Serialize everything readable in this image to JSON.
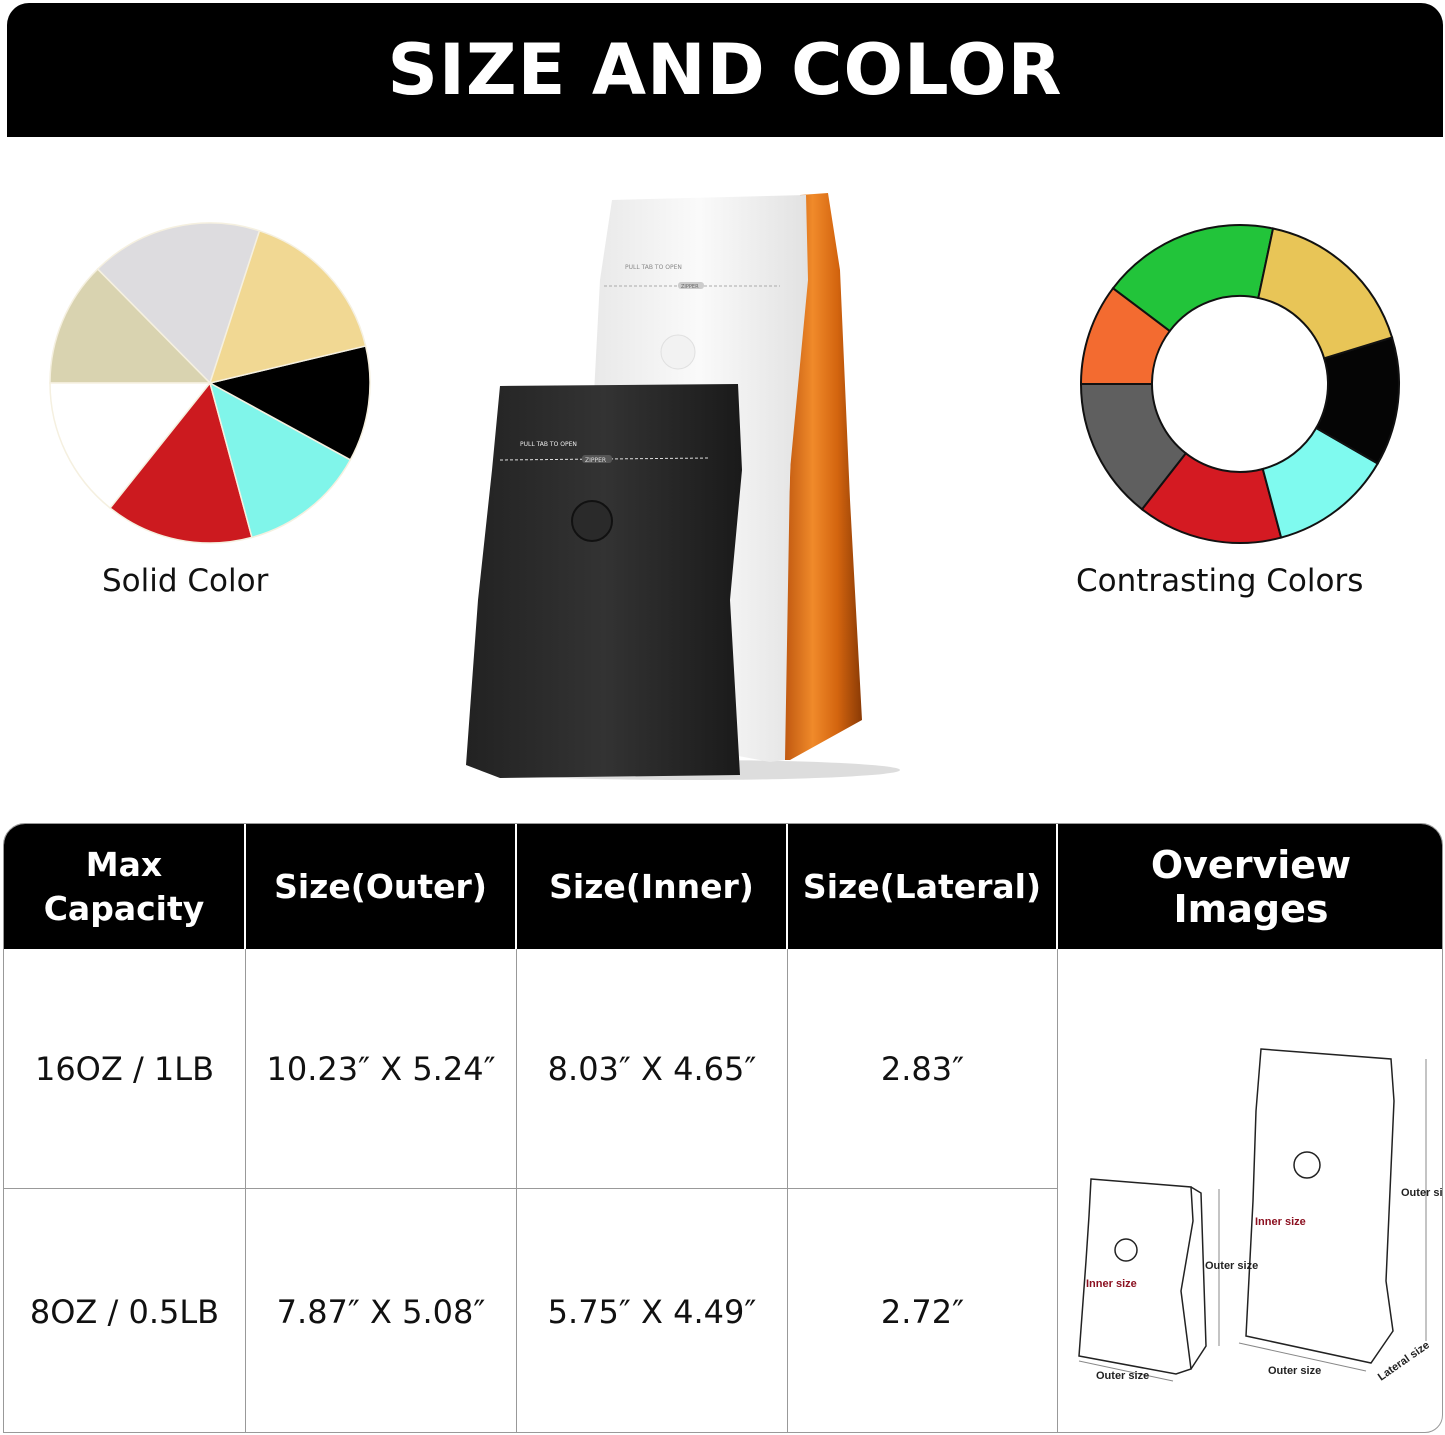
{
  "title": "SIZE AND COLOR",
  "solid_color": {
    "label": "Solid Color",
    "slices": [
      {
        "color": "#dddcdf",
        "from": 72,
        "to": 134.6
      },
      {
        "color": "#d9d3b0",
        "from": 134.6,
        "to": 180
      },
      {
        "color": "#ffffff",
        "from": 180,
        "to": 231.4
      },
      {
        "color": "#cc1a1f",
        "from": 231.4,
        "to": 285.2
      },
      {
        "color": "#80f5ea",
        "from": 285.2,
        "to": 331.3
      },
      {
        "color": "#000000",
        "from": 331.3,
        "to": 373.4
      },
      {
        "color": "#f1d893",
        "from": 373.4,
        "to": 432
      }
    ]
  },
  "contrasting_colors": {
    "label": "Contrasting Colors",
    "segments": [
      {
        "color": "#22c43a",
        "from": 78,
        "to": 143
      },
      {
        "color": "#f36b30",
        "from": 143,
        "to": 180
      },
      {
        "color": "#5f5f5f",
        "from": 180,
        "to": 232
      },
      {
        "color": "#d41a22",
        "from": 232,
        "to": 285
      },
      {
        "color": "#7ffaef",
        "from": 285,
        "to": 330
      },
      {
        "color": "#050505",
        "from": 330,
        "to": 377
      },
      {
        "color": "#e8c557",
        "from": 377,
        "to": 438
      }
    ]
  },
  "bag_print": {
    "pull_tab": "PULL TAB TO OPEN",
    "zipper": "ZIPPER"
  },
  "table": {
    "headers": [
      "Max Capacity",
      "Size(Outer)",
      "Size(Inner)",
      "Size(Lateral)",
      "Overview Images"
    ],
    "rows": [
      [
        "16OZ / 1LB",
        "10.23″  X 5.24″",
        "8.03″  X 4.65″",
        "2.83″"
      ],
      [
        "8OZ / 0.5LB",
        "7.87″  X 5.08″",
        "5.75″  X 4.49″",
        "2.72″"
      ]
    ],
    "overview_labels": {
      "outer": "Outer size",
      "inner": "Inner size",
      "lateral": "Lateral size"
    }
  }
}
